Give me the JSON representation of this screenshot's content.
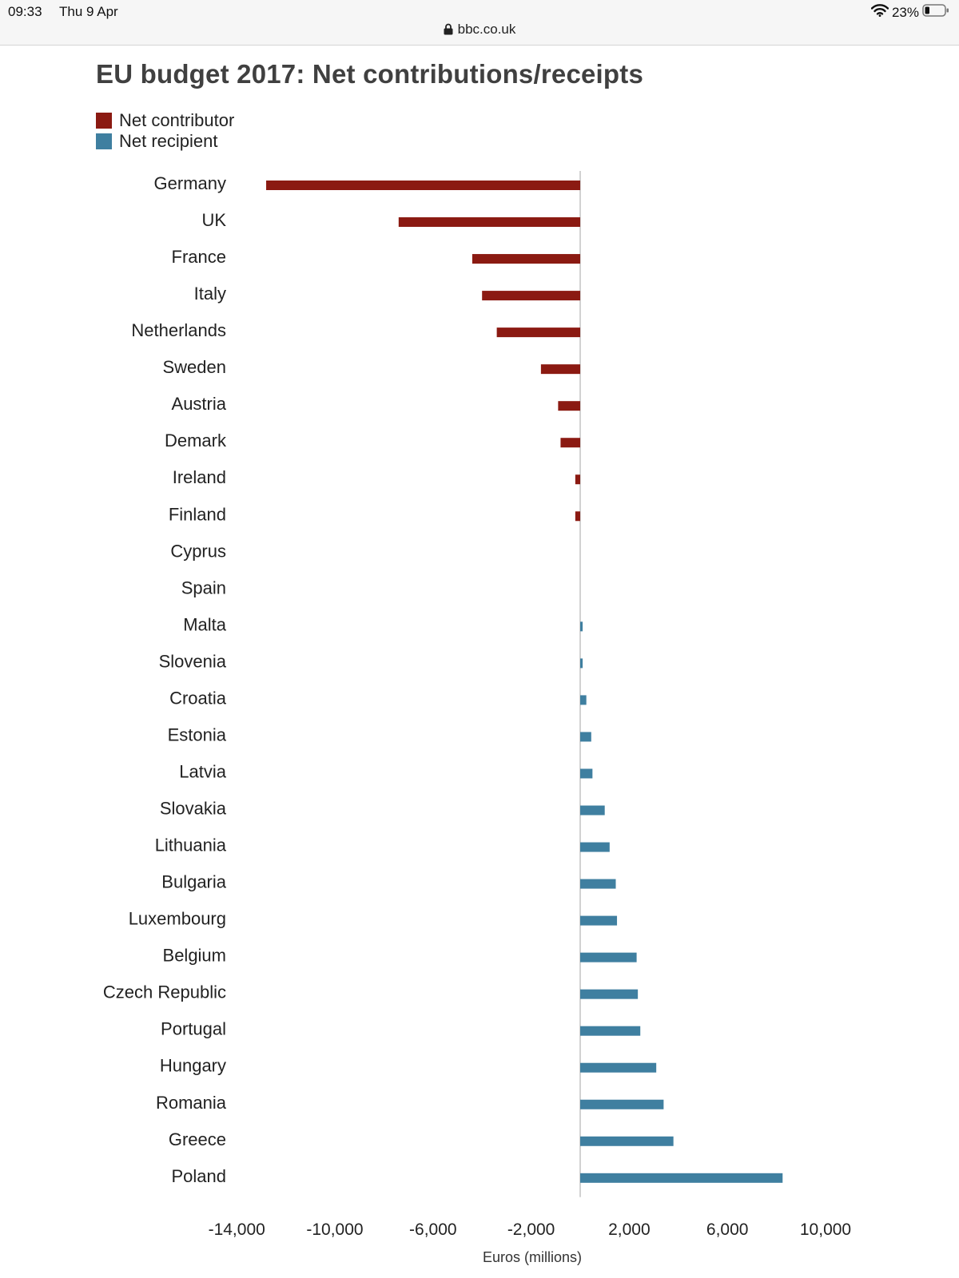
{
  "status": {
    "time": "09:33",
    "date": "Thu 9 Apr",
    "battery": "23%"
  },
  "browser": {
    "url": "bbc.co.uk"
  },
  "icons": [
    "lock-icon",
    "wifi-icon",
    "battery-icon"
  ],
  "chart_data": {
    "type": "bar",
    "orientation": "horizontal",
    "title": "EU budget 2017: Net contributions/receipts",
    "xlabel": "Euros (millions)",
    "ylabel": "",
    "xlim": [
      -14000,
      11000
    ],
    "xticks": [
      -14000,
      -10000,
      -6000,
      -2000,
      2000,
      6000,
      10000
    ],
    "xtick_labels": [
      "-14,000",
      "-10,000",
      "-6,000",
      "-2,000",
      "2,000",
      "6,000",
      "10,000"
    ],
    "legend": [
      {
        "label": "Net contributor",
        "color": "#8b1a12"
      },
      {
        "label": "Net recipient",
        "color": "#3f7fa0"
      }
    ],
    "legend_position": "top-left",
    "categories": [
      "Germany",
      "UK",
      "France",
      "Italy",
      "Netherlands",
      "Sweden",
      "Austria",
      "Demark",
      "Ireland",
      "Finland",
      "Cyprus",
      "Spain",
      "Malta",
      "Slovenia",
      "Croatia",
      "Estonia",
      "Latvia",
      "Slovakia",
      "Lithuania",
      "Bulgaria",
      "Luxembourg",
      "Belgium",
      "Czech Republic",
      "Portugal",
      "Hungary",
      "Romania",
      "Greece",
      "Poland"
    ],
    "values": [
      -12800,
      -7400,
      -4400,
      -4000,
      -3400,
      -1600,
      -900,
      -800,
      -200,
      -200,
      0,
      0,
      100,
      100,
      250,
      450,
      500,
      1000,
      1200,
      1450,
      1500,
      2300,
      2350,
      2450,
      3100,
      3400,
      3800,
      8250
    ]
  }
}
